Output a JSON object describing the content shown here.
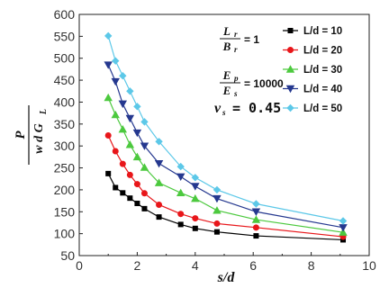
{
  "chart_data": {
    "type": "line",
    "xlabel": "s/d",
    "ylabel": {
      "numerator": "P",
      "denominator": "w d G",
      "denominator_sub": "L"
    },
    "xlim": [
      0,
      10
    ],
    "ylim": [
      50,
      600
    ],
    "x_ticks": [
      0,
      2,
      4,
      6,
      8,
      10
    ],
    "y_ticks": [
      50,
      100,
      150,
      200,
      250,
      300,
      350,
      400,
      450,
      500,
      550,
      600
    ],
    "grid": false,
    "legend_position": "top-right",
    "annotations": {
      "ratio_lb": {
        "num": "L",
        "num_sub": "r",
        "den": "B",
        "den_sub": "r",
        "eq": "= 1"
      },
      "ratio_e": {
        "num": "E",
        "num_sub": "p",
        "den": "E",
        "den_sub": "s",
        "eq": "= 10000"
      },
      "poisson": {
        "sym": "v",
        "sub": "s",
        "eq": "= 0.45"
      }
    },
    "series": [
      {
        "name": "L/d = 10",
        "color": "#000000",
        "marker": "square",
        "x": [
          1,
          1.25,
          1.5,
          1.75,
          2,
          2.25,
          2.75,
          3.5,
          4,
          4.75,
          6.1,
          9.1
        ],
        "y": [
          237,
          205,
          193,
          181,
          169,
          157,
          138,
          121,
          112,
          104,
          95,
          86
        ]
      },
      {
        "name": "L/d = 20",
        "color": "#e8161a",
        "marker": "circle",
        "x": [
          1,
          1.25,
          1.5,
          1.75,
          2,
          2.25,
          2.75,
          3.5,
          4,
          4.75,
          6.1,
          9.1
        ],
        "y": [
          324,
          288,
          259,
          234,
          213,
          192,
          166,
          145,
          135,
          123,
          114,
          93
        ]
      },
      {
        "name": "L/d = 30",
        "color": "#4cc93e",
        "marker": "triangle-up",
        "x": [
          1,
          1.25,
          1.5,
          1.75,
          2,
          2.25,
          2.75,
          3.5,
          4,
          4.75,
          6.1,
          9.1
        ],
        "y": [
          410,
          371,
          338,
          303,
          275,
          251,
          216,
          193,
          180,
          153,
          132,
          103
        ]
      },
      {
        "name": "L/d = 40",
        "color": "#25388f",
        "marker": "triangle-down",
        "x": [
          1,
          1.25,
          1.5,
          1.75,
          2,
          2.25,
          2.75,
          3.5,
          4,
          4.75,
          6.1,
          9.1
        ],
        "y": [
          485,
          447,
          396,
          363,
          330,
          300,
          260,
          230,
          208,
          180,
          150,
          114
        ]
      },
      {
        "name": "L/d = 50",
        "color": "#5cc8e8",
        "marker": "diamond",
        "x": [
          1,
          1.25,
          1.5,
          1.75,
          2,
          2.25,
          2.75,
          3.5,
          4,
          4.75,
          6.1,
          9.1
        ],
        "y": [
          551,
          494,
          460,
          425,
          390,
          355,
          310,
          253,
          228,
          200,
          168,
          129
        ]
      }
    ]
  }
}
